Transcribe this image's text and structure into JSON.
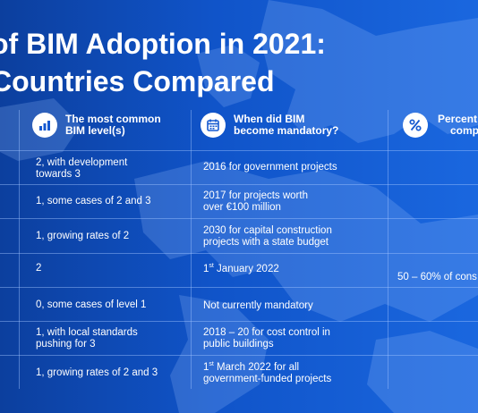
{
  "title": {
    "line1": "of BIM Adoption in 2021:",
    "line2": "Countries Compared"
  },
  "headers": {
    "level": {
      "line1": "The most common",
      "line2": "BIM level(s)",
      "icon": "bar-chart-icon"
    },
    "mandatory": {
      "line1": "When did BIM",
      "line2": "become mandatory?",
      "icon": "calendar-icon"
    },
    "percent": {
      "line1": "Percent",
      "line2": "comp",
      "icon": "percent-icon"
    }
  },
  "rows": [
    {
      "level": [
        "2, with development",
        "towards 3"
      ],
      "mandatory": {
        "lines": [
          "2016 for government projects"
        ]
      }
    },
    {
      "level": [
        "1, some cases of 2 and 3"
      ],
      "mandatory": {
        "lines": [
          "2017 for projects worth",
          "over €100 million"
        ]
      }
    },
    {
      "level": [
        "1, growing rates of 2"
      ],
      "mandatory": {
        "lines": [
          "2030 for capital construction",
          "projects with a state budget"
        ]
      }
    },
    {
      "level": [
        "2"
      ],
      "mandatory": {
        "prefix": "1",
        "sup": "st",
        "rest": " January 2022"
      }
    },
    {
      "level": [
        "0, some cases of level 1"
      ],
      "mandatory": {
        "lines": [
          "Not currently mandatory"
        ]
      }
    },
    {
      "level": [
        "1, with local standards",
        "pushing for 3"
      ],
      "mandatory": {
        "lines": [
          "2018 – 20 for cost control in",
          "public buildings"
        ]
      }
    },
    {
      "level": [
        "1, growing rates of 2 and 3"
      ],
      "mandatory": {
        "prefix": "1",
        "sup": "st",
        "rest": " March 2022 for all",
        "line2": "government-funded projects"
      }
    }
  ],
  "percent_note": "50 – 60% of cons",
  "colors": {
    "background": "#1054c9",
    "text": "#ffffff",
    "icon_fill": "#1559d0"
  }
}
